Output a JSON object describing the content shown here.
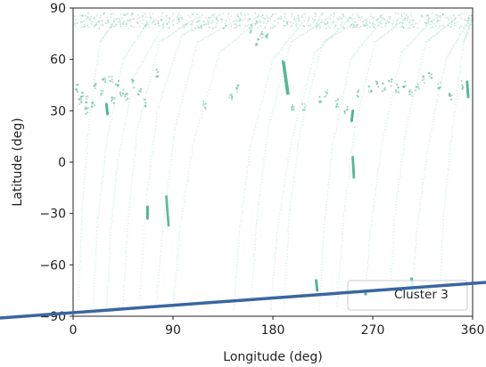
{
  "chart_data": {
    "type": "scatter",
    "title": "",
    "xlabel": "Longitude (deg)",
    "ylabel": "Latitude (deg)",
    "xlim": [
      0,
      360
    ],
    "ylim": [
      -90,
      90
    ],
    "xticks": [
      0,
      90,
      180,
      270,
      360
    ],
    "yticks": [
      90,
      60,
      30,
      0,
      -30,
      -60,
      -90
    ],
    "xtick_labels": [
      "0",
      "90",
      "180",
      "270",
      "360"
    ],
    "ytick_labels": [
      "90",
      "60",
      "30",
      "0",
      "−30",
      "−60",
      "−90"
    ],
    "grid": false,
    "legend": {
      "position": "bottom-right",
      "entries": [
        "Cluster 3"
      ]
    },
    "series": [
      {
        "name": "Cluster 3",
        "color": "#4fb593",
        "tracks": [
          [
            [
              5,
              -80
            ],
            [
              8,
              -30
            ],
            [
              14,
              20
            ],
            [
              24,
              70
            ],
            [
              40,
              84
            ]
          ],
          [
            [
              18,
              -84
            ],
            [
              22,
              -35
            ],
            [
              30,
              10
            ],
            [
              45,
              60
            ],
            [
              70,
              84
            ]
          ],
          [
            [
              30,
              -86
            ],
            [
              34,
              -40
            ],
            [
              40,
              0
            ],
            [
              55,
              50
            ],
            [
              85,
              84
            ]
          ],
          [
            [
              45,
              -84
            ],
            [
              50,
              -30
            ],
            [
              58,
              20
            ],
            [
              78,
              70
            ],
            [
              110,
              84
            ]
          ],
          [
            [
              60,
              -80
            ],
            [
              66,
              -20
            ],
            [
              76,
              30
            ],
            [
              98,
              74
            ],
            [
              130,
              84
            ]
          ],
          [
            [
              75,
              -82
            ],
            [
              82,
              -30
            ],
            [
              92,
              20
            ],
            [
              112,
              70
            ],
            [
              150,
              84
            ]
          ],
          [
            [
              90,
              -86
            ],
            [
              96,
              -40
            ],
            [
              108,
              10
            ],
            [
              132,
              64
            ],
            [
              170,
              84
            ]
          ],
          [
            [
              145,
              -86
            ],
            [
              150,
              -40
            ],
            [
              160,
              10
            ],
            [
              180,
              60
            ],
            [
              210,
              84
            ]
          ],
          [
            [
              160,
              -84
            ],
            [
              166,
              -30
            ],
            [
              176,
              20
            ],
            [
              196,
              70
            ],
            [
              230,
              84
            ]
          ],
          [
            [
              178,
              -86
            ],
            [
              184,
              -40
            ],
            [
              196,
              10
            ],
            [
              218,
              64
            ],
            [
              250,
              84
            ]
          ],
          [
            [
              190,
              -84
            ],
            [
              195,
              -30
            ],
            [
              205,
              20
            ],
            [
              225,
              70
            ],
            [
              260,
              84
            ]
          ],
          [
            [
              222,
              -86
            ],
            [
              226,
              -40
            ],
            [
              234,
              10
            ],
            [
              250,
              60
            ],
            [
              280,
              84
            ]
          ],
          [
            [
              238,
              -84
            ],
            [
              244,
              -30
            ],
            [
              254,
              20
            ],
            [
              272,
              70
            ],
            [
              300,
              84
            ]
          ],
          [
            [
              262,
              -86
            ],
            [
              268,
              -40
            ],
            [
              278,
              10
            ],
            [
              296,
              64
            ],
            [
              325,
              84
            ]
          ],
          [
            [
              285,
              -84
            ],
            [
              290,
              -30
            ],
            [
              300,
              20
            ],
            [
              318,
              70
            ],
            [
              345,
              84
            ]
          ],
          [
            [
              305,
              -86
            ],
            [
              310,
              -40
            ],
            [
              320,
              10
            ],
            [
              336,
              60
            ],
            [
              358,
              84
            ]
          ],
          [
            [
              330,
              -84
            ],
            [
              334,
              -30
            ],
            [
              342,
              20
            ],
            [
              352,
              70
            ],
            [
              360,
              84
            ]
          ]
        ],
        "dense_segments": [
          [
            [
              189,
              59
            ],
            [
              193,
              40
            ]
          ],
          [
            [
              190,
              58
            ],
            [
              194,
              40
            ]
          ],
          [
            [
              84,
              -20
            ],
            [
              86,
              -37
            ]
          ],
          [
            [
              67,
              -26
            ],
            [
              67,
              -33
            ]
          ],
          [
            [
              252,
              3
            ],
            [
              253,
              -9
            ]
          ],
          [
            [
              252,
              30
            ],
            [
              251,
              24
            ]
          ],
          [
            [
              219,
              -69
            ],
            [
              220,
              -75
            ]
          ],
          [
            [
              305,
              -68
            ],
            [
              306,
              -75
            ]
          ],
          [
            [
              355,
              47
            ],
            [
              356,
              38
            ]
          ],
          [
            [
              30,
              34
            ],
            [
              31,
              28
            ]
          ]
        ],
        "blobs": [
          [
            3,
            43
          ],
          [
            8,
            40
          ],
          [
            12,
            37
          ],
          [
            20,
            44
          ],
          [
            28,
            47
          ],
          [
            34,
            49
          ],
          [
            40,
            45
          ],
          [
            44,
            40
          ],
          [
            48,
            38
          ],
          [
            26,
            40
          ],
          [
            18,
            33
          ],
          [
            12,
            30
          ],
          [
            6,
            35
          ],
          [
            36,
            36
          ],
          [
            54,
            46
          ],
          [
            60,
            42
          ],
          [
            64,
            35
          ],
          [
            75,
            52
          ],
          [
            118,
            33
          ],
          [
            142,
            38
          ],
          [
            148,
            43
          ],
          [
            160,
            78
          ],
          [
            166,
            70
          ],
          [
            170,
            75
          ],
          [
            175,
            73
          ],
          [
            198,
            33
          ],
          [
            208,
            32
          ],
          [
            222,
            36
          ],
          [
            228,
            40
          ],
          [
            238,
            34
          ],
          [
            246,
            30
          ],
          [
            256,
            40
          ],
          [
            268,
            42
          ],
          [
            274,
            45
          ],
          [
            280,
            44
          ],
          [
            286,
            46
          ],
          [
            292,
            43
          ],
          [
            298,
            45
          ],
          [
            304,
            40
          ],
          [
            310,
            44
          ],
          [
            316,
            48
          ],
          [
            322,
            50
          ],
          [
            330,
            45
          ],
          [
            340,
            38
          ],
          [
            350,
            45
          ]
        ]
      }
    ]
  }
}
